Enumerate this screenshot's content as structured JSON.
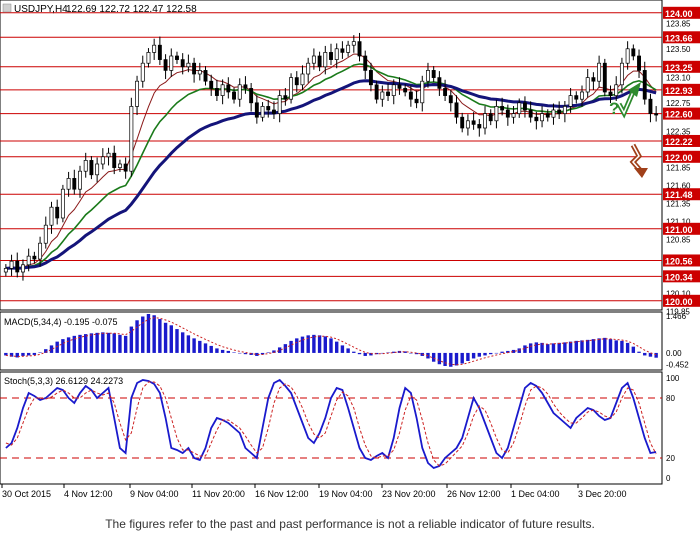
{
  "header": {
    "symbol": "USDJPY,H4",
    "ohlc": "122.69 122.72 122.47 122.58"
  },
  "footer": {
    "disclaimer": "The figures refer to the past and past performance is not a reliable indicator of future results."
  },
  "chart_data": [
    {
      "type": "candlestick",
      "title": "USDJPY,H4",
      "ohlc_label": "122.69 122.72 122.47 122.58",
      "ylim": [
        119.9,
        124.15
      ],
      "x_ticks": [
        "30 Oct 2015",
        "4 Nov 12:00",
        "9 Nov 04:00",
        "11 Nov 20:00",
        "16 Nov 12:00",
        "19 Nov 04:00",
        "23 Nov 20:00",
        "26 Nov 12:00",
        "1 Dec 04:00",
        "3 Dec 20:00"
      ],
      "y_ticks": [
        124.0,
        123.85,
        123.66,
        123.5,
        123.25,
        123.1,
        122.93,
        122.75,
        122.6,
        122.35,
        122.22,
        122.0,
        121.85,
        121.6,
        121.48,
        121.35,
        121.1,
        121.0,
        120.85,
        120.56,
        120.34,
        120.1,
        120.0,
        119.85
      ],
      "level_labels": [
        "124.00",
        "123.66",
        "123.25",
        "122.93",
        "122.60",
        "122.22",
        "122.00",
        "121.48",
        "121.00",
        "120.56",
        "120.34",
        "120.00"
      ],
      "levels": [
        124.0,
        123.66,
        123.25,
        122.93,
        122.6,
        122.22,
        122.0,
        121.48,
        121.0,
        120.56,
        120.34,
        120.0
      ],
      "grid": true,
      "close": [
        120.45,
        120.55,
        120.4,
        120.5,
        120.62,
        120.58,
        120.8,
        121.05,
        121.3,
        121.15,
        121.55,
        121.7,
        121.55,
        121.8,
        121.95,
        121.75,
        121.9,
        122.0,
        122.05,
        121.85,
        121.9,
        121.8,
        122.7,
        123.05,
        123.3,
        123.45,
        123.55,
        123.35,
        123.2,
        123.4,
        123.35,
        123.25,
        123.3,
        123.15,
        123.2,
        123.05,
        122.95,
        122.85,
        123.0,
        122.9,
        122.8,
        123.0,
        122.95,
        122.75,
        122.55,
        122.7,
        122.65,
        122.6,
        122.85,
        122.8,
        123.1,
        123.0,
        123.15,
        123.3,
        123.4,
        123.25,
        123.45,
        123.35,
        123.5,
        123.45,
        123.55,
        123.6,
        123.4,
        123.2,
        123.0,
        122.8,
        122.9,
        122.85,
        123.0,
        122.95,
        122.9,
        122.8,
        122.75,
        123.05,
        123.2,
        123.1,
        122.95,
        122.85,
        122.75,
        122.55,
        122.4,
        122.5,
        122.45,
        122.4,
        122.6,
        122.5,
        122.7,
        122.65,
        122.55,
        122.6,
        122.75,
        122.65,
        122.55,
        122.5,
        122.6,
        122.55,
        122.65,
        122.6,
        122.7,
        122.85,
        122.8,
        122.9,
        123.1,
        123.05,
        123.3,
        122.9,
        122.85,
        123.0,
        123.3,
        123.5,
        123.4,
        123.2,
        122.8,
        122.6,
        122.58
      ],
      "indicators": [
        {
          "name": "MA fast",
          "color": "#8b1a1a"
        },
        {
          "name": "MA mid",
          "color": "#1a7a1a"
        },
        {
          "name": "MA slow",
          "color": "#14147a"
        }
      ]
    },
    {
      "type": "bar",
      "title": "MACD(5,34,4) -0.195 -0.075",
      "y_ticks": [
        1.466,
        0.0,
        -0.452
      ],
      "ylim": [
        -0.6,
        1.55
      ],
      "color": "#1a1acc",
      "signal_color": "#cc2222",
      "values": [
        -0.1,
        -0.15,
        -0.18,
        -0.12,
        -0.1,
        -0.08,
        0.02,
        0.15,
        0.3,
        0.45,
        0.55,
        0.62,
        0.68,
        0.72,
        0.75,
        0.78,
        0.8,
        0.82,
        0.8,
        0.78,
        0.72,
        0.68,
        1.05,
        1.3,
        1.45,
        1.55,
        1.5,
        1.35,
        1.2,
        1.1,
        0.95,
        0.82,
        0.7,
        0.58,
        0.48,
        0.38,
        0.28,
        0.18,
        0.12,
        0.08,
        0.02,
        -0.02,
        -0.05,
        -0.08,
        -0.12,
        -0.06,
        0.02,
        0.1,
        0.22,
        0.35,
        0.48,
        0.58,
        0.65,
        0.7,
        0.72,
        0.7,
        0.66,
        0.58,
        0.45,
        0.3,
        0.18,
        0.05,
        -0.05,
        -0.12,
        -0.1,
        -0.05,
        -0.02,
        0.02,
        0.05,
        0.08,
        0.06,
        0.0,
        -0.05,
        -0.12,
        -0.22,
        -0.35,
        -0.45,
        -0.52,
        -0.55,
        -0.5,
        -0.42,
        -0.32,
        -0.22,
        -0.15,
        -0.1,
        -0.05,
        0.0,
        0.05,
        0.08,
        0.12,
        0.18,
        0.3,
        0.38,
        0.42,
        0.4,
        0.35,
        0.38,
        0.4,
        0.42,
        0.45,
        0.48,
        0.5,
        0.52,
        0.55,
        0.58,
        0.6,
        0.55,
        0.5,
        0.48,
        0.4,
        0.25,
        0.05,
        -0.1,
        -0.15,
        -0.19
      ]
    },
    {
      "type": "line",
      "title": "Stoch(5,3,3) 26.6129 24.2273",
      "y_ticks": [
        100,
        80,
        20,
        0
      ],
      "ylim": [
        0,
        100
      ],
      "levels": [
        80,
        20
      ],
      "series": [
        {
          "color": "#1a1acc",
          "values": [
            30,
            35,
            50,
            70,
            85,
            82,
            78,
            80,
            85,
            90,
            88,
            80,
            75,
            85,
            92,
            88,
            80,
            85,
            90,
            60,
            30,
            25,
            80,
            95,
            98,
            97,
            94,
            85,
            60,
            30,
            28,
            25,
            30,
            20,
            18,
            30,
            50,
            60,
            58,
            55,
            50,
            45,
            30,
            25,
            20,
            50,
            80,
            95,
            98,
            92,
            85,
            70,
            55,
            40,
            35,
            45,
            60,
            80,
            90,
            88,
            70,
            50,
            30,
            20,
            18,
            22,
            25,
            20,
            40,
            70,
            90,
            85,
            60,
            30,
            15,
            10,
            12,
            20,
            25,
            30,
            40,
            60,
            80,
            70,
            55,
            40,
            25,
            20,
            30,
            50,
            70,
            90,
            95,
            92,
            85,
            75,
            65,
            60,
            55,
            50,
            60,
            65,
            70,
            68,
            62,
            58,
            60,
            75,
            90,
            95,
            80,
            60,
            40,
            25,
            26
          ]
        },
        {
          "color": "#cc2222",
          "values": [
            35,
            33,
            40,
            55,
            70,
            80,
            80,
            79,
            81,
            85,
            88,
            85,
            80,
            80,
            85,
            88,
            85,
            83,
            85,
            75,
            55,
            38,
            45,
            70,
            90,
            96,
            96,
            92,
            80,
            60,
            40,
            28,
            28,
            25,
            22,
            22,
            35,
            48,
            58,
            58,
            54,
            50,
            42,
            33,
            25,
            30,
            50,
            75,
            90,
            94,
            91,
            82,
            70,
            55,
            44,
            40,
            45,
            62,
            78,
            86,
            82,
            70,
            50,
            33,
            22,
            20,
            22,
            22,
            28,
            45,
            68,
            82,
            78,
            58,
            35,
            18,
            12,
            14,
            20,
            26,
            32,
            45,
            62,
            72,
            68,
            55,
            40,
            28,
            25,
            35,
            52,
            72,
            88,
            92,
            90,
            84,
            74,
            66,
            60,
            55,
            55,
            60,
            66,
            68,
            66,
            62,
            60,
            66,
            80,
            90,
            88,
            75,
            55,
            35,
            24
          ]
        }
      ]
    }
  ]
}
